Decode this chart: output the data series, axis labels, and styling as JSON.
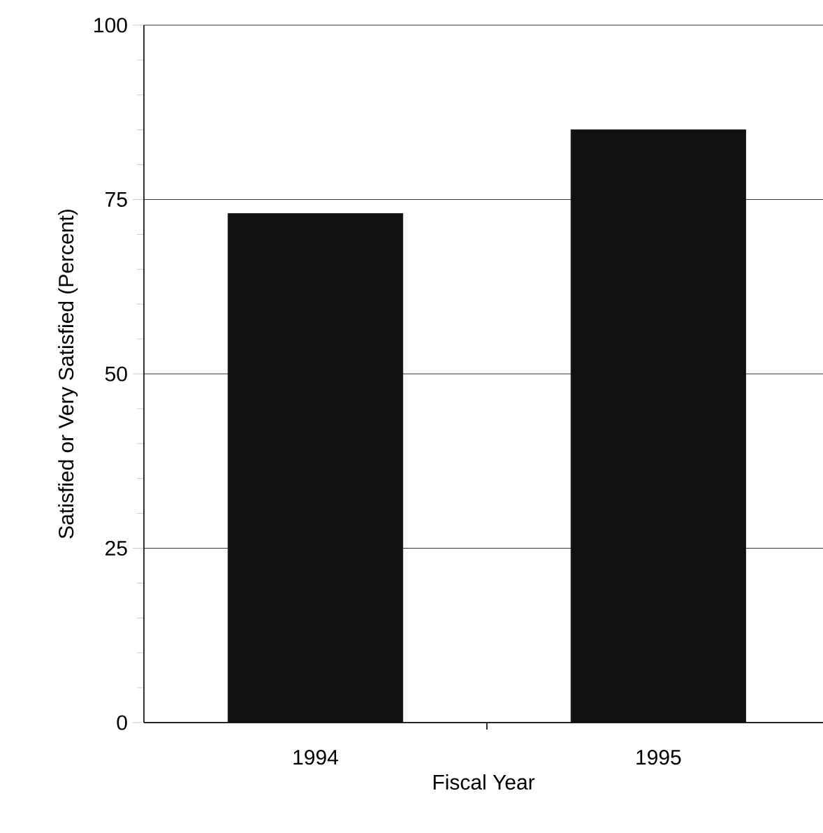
{
  "chart_data": {
    "type": "bar",
    "xlabel": "Fiscal Year",
    "ylabel": "Satisfied or Very Satisfied (Percent)",
    "categories": [
      "1994",
      "1995"
    ],
    "values": [
      73,
      85
    ],
    "color": "#111111",
    "ylim": [
      0,
      100
    ],
    "yticks": [
      0,
      25,
      50,
      75,
      100
    ],
    "grid": "y"
  }
}
